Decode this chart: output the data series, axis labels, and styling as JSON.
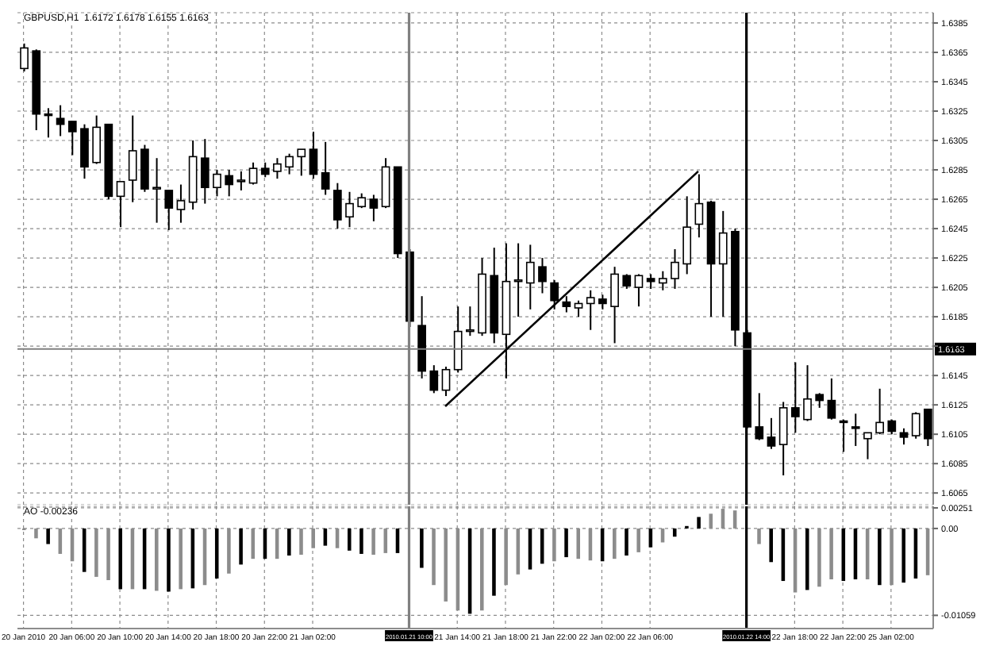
{
  "chart_data": [
    {
      "type": "candlestick",
      "title": "GBPUSD,H1  1.6172 1.6178 1.6155 1.6163",
      "categories": [
        "20 Jan 2010",
        null,
        null,
        null,
        "20 Jan 06:00",
        null,
        null,
        null,
        "20 Jan 10:00",
        null,
        null,
        null,
        "20 Jan 14:00",
        null,
        null,
        null,
        "20 Jan 18:00",
        null,
        null,
        null,
        "20 Jan 22:00",
        null,
        null,
        null,
        "21 Jan 02:00",
        null,
        null,
        null,
        null,
        null,
        null,
        null,
        "2010.01.21 10:00",
        null,
        null,
        null,
        "21 Jan 14:00",
        null,
        null,
        null,
        "21 Jan 18:00",
        null,
        null,
        null,
        "21 Jan 22:00",
        null,
        null,
        null,
        "22 Jan 02:00",
        null,
        null,
        null,
        "22 Jan 06:00",
        null,
        null,
        null,
        null,
        null,
        null,
        null,
        "2010.01.22 14:00",
        null,
        null,
        null,
        "22 Jan 18:00",
        null,
        null,
        null,
        "22 Jan 22:00",
        null,
        null,
        null,
        "25 Jan 02:00",
        null,
        null,
        null
      ],
      "series": [
        {
          "type": "candlestick",
          "color": "#000000",
          "ohlc": [
            [
              1.6354,
              1.6371,
              1.6352,
              1.6368
            ],
            [
              1.6366,
              1.6367,
              1.6312,
              1.6323
            ],
            [
              1.6323,
              1.6327,
              1.6307,
              1.6322
            ],
            [
              1.632,
              1.6329,
              1.6308,
              1.6316
            ],
            [
              1.6318,
              1.6318,
              1.6295,
              1.6311
            ],
            [
              1.6313,
              1.6316,
              1.6279,
              1.6287
            ],
            [
              1.629,
              1.6322,
              1.6289,
              1.6314
            ],
            [
              1.6316,
              1.6316,
              1.6265,
              1.6267
            ],
            [
              1.6267,
              1.6277,
              1.6246,
              1.6277
            ],
            [
              1.6278,
              1.6322,
              1.6263,
              1.6298
            ],
            [
              1.6299,
              1.6302,
              1.627,
              1.6272
            ],
            [
              1.6272,
              1.6293,
              1.6249,
              1.6273
            ],
            [
              1.6271,
              1.6271,
              1.6244,
              1.6259
            ],
            [
              1.6258,
              1.6275,
              1.6249,
              1.6264
            ],
            [
              1.6263,
              1.6305,
              1.6258,
              1.6294
            ],
            [
              1.6293,
              1.6306,
              1.6262,
              1.6273
            ],
            [
              1.6273,
              1.6285,
              1.6267,
              1.6282
            ],
            [
              1.6281,
              1.6285,
              1.6267,
              1.6275
            ],
            [
              1.6277,
              1.6284,
              1.6271,
              1.6278
            ],
            [
              1.6276,
              1.629,
              1.6275,
              1.6286
            ],
            [
              1.6286,
              1.629,
              1.628,
              1.6282
            ],
            [
              1.6284,
              1.6293,
              1.6279,
              1.6289
            ],
            [
              1.6287,
              1.6296,
              1.6282,
              1.6294
            ],
            [
              1.6294,
              1.6299,
              1.6281,
              1.6299
            ],
            [
              1.6299,
              1.6311,
              1.6279,
              1.6282
            ],
            [
              1.6283,
              1.6304,
              1.6268,
              1.6272
            ],
            [
              1.6271,
              1.6276,
              1.6245,
              1.6251
            ],
            [
              1.6253,
              1.627,
              1.6246,
              1.6262
            ],
            [
              1.626,
              1.6269,
              1.6259,
              1.6266
            ],
            [
              1.6265,
              1.6268,
              1.625,
              1.6259
            ],
            [
              1.626,
              1.6293,
              1.6259,
              1.6287
            ],
            [
              1.6287,
              1.6287,
              1.6225,
              1.6228
            ],
            [
              1.6229,
              1.6231,
              1.6178,
              1.6182
            ],
            [
              1.6179,
              1.6199,
              1.6143,
              1.6148
            ],
            [
              1.6148,
              1.6152,
              1.6133,
              1.6135
            ],
            [
              1.6135,
              1.6151,
              1.6131,
              1.6149
            ],
            [
              1.6149,
              1.6192,
              1.6147,
              1.6175
            ],
            [
              1.6175,
              1.6192,
              1.6172,
              1.6176
            ],
            [
              1.6174,
              1.6225,
              1.6172,
              1.6214
            ],
            [
              1.6213,
              1.6232,
              1.6167,
              1.6174
            ],
            [
              1.6173,
              1.6235,
              1.6143,
              1.6209
            ],
            [
              1.6209,
              1.6235,
              1.6185,
              1.621
            ],
            [
              1.6208,
              1.6234,
              1.619,
              1.6222
            ],
            [
              1.6219,
              1.6225,
              1.6201,
              1.6209
            ],
            [
              1.6208,
              1.621,
              1.619,
              1.6196
            ],
            [
              1.6195,
              1.6199,
              1.6188,
              1.6192
            ],
            [
              1.6191,
              1.6196,
              1.6185,
              1.6194
            ],
            [
              1.6194,
              1.6203,
              1.6176,
              1.6198
            ],
            [
              1.6197,
              1.62,
              1.619,
              1.6194
            ],
            [
              1.6192,
              1.6219,
              1.6167,
              1.6214
            ],
            [
              1.6213,
              1.6214,
              1.6204,
              1.6206
            ],
            [
              1.6205,
              1.6214,
              1.6192,
              1.6213
            ],
            [
              1.6211,
              1.6214,
              1.6204,
              1.6209
            ],
            [
              1.6208,
              1.6216,
              1.6203,
              1.6211
            ],
            [
              1.6211,
              1.6231,
              1.6204,
              1.6222
            ],
            [
              1.6221,
              1.6267,
              1.6214,
              1.6246
            ],
            [
              1.6248,
              1.6282,
              1.6239,
              1.6262
            ],
            [
              1.6263,
              1.6264,
              1.6185,
              1.6221
            ],
            [
              1.6221,
              1.6257,
              1.6185,
              1.6242
            ],
            [
              1.6243,
              1.6245,
              1.6165,
              1.6176
            ],
            [
              1.6174,
              1.6176,
              1.6109,
              1.611
            ],
            [
              1.611,
              1.6133,
              1.6101,
              1.6102
            ],
            [
              1.6103,
              1.6116,
              1.6095,
              1.6097
            ],
            [
              1.6098,
              1.6127,
              1.6077,
              1.6123
            ],
            [
              1.6123,
              1.6154,
              1.6106,
              1.6117
            ],
            [
              1.6115,
              1.6152,
              1.6114,
              1.6129
            ],
            [
              1.6132,
              1.6133,
              1.6123,
              1.6128
            ],
            [
              1.6128,
              1.6143,
              1.6115,
              1.6116
            ],
            [
              1.6114,
              1.6115,
              1.6093,
              1.6113
            ],
            [
              1.611,
              1.6119,
              1.6097,
              1.6109
            ],
            [
              1.6102,
              1.6106,
              1.6088,
              1.6106
            ],
            [
              1.6106,
              1.6136,
              1.6105,
              1.6113
            ],
            [
              1.6114,
              1.6115,
              1.6105,
              1.6107
            ],
            [
              1.6106,
              1.6109,
              1.6098,
              1.6103
            ],
            [
              1.6104,
              1.612,
              1.6102,
              1.6119
            ],
            [
              1.6122,
              1.6122,
              1.6097,
              1.6102
            ]
          ]
        },
        {
          "type": "line",
          "color": "#000000",
          "values": [
            null,
            null,
            null,
            null,
            null,
            null,
            null,
            null,
            null,
            null,
            null,
            null,
            null,
            null,
            null,
            null,
            null,
            null,
            null,
            null,
            null,
            null,
            null,
            null,
            null,
            null,
            null,
            null,
            null,
            null,
            null,
            null,
            null,
            null,
            null,
            1.6124,
            null,
            null,
            null,
            null,
            null,
            null,
            null,
            null,
            null,
            null,
            null,
            null,
            null,
            null,
            null,
            null,
            null,
            null,
            null,
            null,
            1.6284,
            null,
            null,
            null,
            null,
            null,
            null,
            null,
            null,
            null,
            null,
            null,
            null,
            null,
            null,
            null,
            null,
            null,
            null,
            null
          ]
        }
      ],
      "ylim": [
        1.6057,
        1.6392
      ],
      "yticks": [
        1.6065,
        1.6085,
        1.6105,
        1.6125,
        1.6145,
        1.6165,
        1.6185,
        1.6205,
        1.6225,
        1.6245,
        1.6265,
        1.6285,
        1.6305,
        1.6325,
        1.6345,
        1.6365,
        1.6385
      ],
      "grid": true,
      "tick_labels": "y",
      "ref_lines": [
        {
          "axis": "x",
          "value": "2010.01.21 10:00",
          "color": "#808080"
        },
        {
          "axis": "x",
          "value": "2010.01.22 14:00",
          "color": "#000000"
        },
        {
          "axis": "y",
          "value": 1.6163,
          "label": "1.6163",
          "color": "#808080"
        }
      ]
    },
    {
      "type": "bar",
      "title": "AO -0.00236",
      "categories": [
        "20 Jan 2010",
        null,
        null,
        null,
        "20 Jan 06:00",
        null,
        null,
        null,
        "20 Jan 10:00",
        null,
        null,
        null,
        "20 Jan 14:00",
        null,
        null,
        null,
        "20 Jan 18:00",
        null,
        null,
        null,
        "20 Jan 22:00",
        null,
        null,
        null,
        "21 Jan 02:00",
        null,
        null,
        null,
        null,
        null,
        null,
        null,
        "2010.01.21 10:00",
        null,
        null,
        null,
        "21 Jan 14:00",
        null,
        null,
        null,
        "21 Jan 18:00",
        null,
        null,
        null,
        "21 Jan 22:00",
        null,
        null,
        null,
        "22 Jan 02:00",
        null,
        null,
        null,
        "22 Jan 06:00",
        null,
        null,
        null,
        null,
        null,
        null,
        null,
        "2010.01.22 14:00",
        null,
        null,
        null,
        "22 Jan 18:00",
        null,
        null,
        null,
        "22 Jan 22:00",
        null,
        null,
        null,
        "25 Jan 02:00",
        null,
        null,
        null
      ],
      "values": [
        -0.0002,
        -0.0012,
        -0.0019,
        -0.0031,
        -0.004,
        -0.0053,
        -0.0059,
        -0.0063,
        -0.0074,
        -0.0074,
        -0.0074,
        -0.0076,
        -0.0077,
        -0.0074,
        -0.0073,
        -0.0069,
        -0.0061,
        -0.0055,
        -0.0044,
        -0.0037,
        -0.0037,
        -0.0037,
        -0.0033,
        -0.0032,
        -0.0024,
        -0.0021,
        -0.0024,
        -0.0027,
        -0.0031,
        -0.0032,
        -0.003,
        -0.003,
        null,
        -0.0048,
        -0.0069,
        -0.0089,
        -0.01,
        -0.0104,
        -0.01,
        -0.0082,
        -0.0069,
        -0.0056,
        -0.005,
        -0.0043,
        -0.004,
        -0.0035,
        -0.0037,
        -0.0039,
        -0.004,
        -0.0037,
        -0.0033,
        -0.0029,
        -0.0023,
        -0.0017,
        -0.001,
        0.0003,
        0.0014,
        0.0018,
        0.0024,
        0.0022,
        null,
        -0.0019,
        -0.0041,
        -0.0064,
        -0.0078,
        -0.0075,
        -0.0071,
        -0.0062,
        -0.0064,
        -0.0062,
        -0.0062,
        -0.0069,
        -0.0069,
        -0.0066,
        -0.0061,
        -0.0057
      ],
      "colors": [
        "#8c8c8c",
        "#8c8c8c",
        "#000000",
        "#8c8c8c",
        "#8c8c8c",
        "#000000",
        "#8c8c8c",
        "#8c8c8c",
        "#000000",
        "#8c8c8c",
        "#000000",
        "#8c8c8c",
        "#000000",
        "#8c8c8c",
        "#000000",
        "#8c8c8c",
        "#000000",
        "#8c8c8c",
        "#000000",
        "#8c8c8c",
        "#000000",
        "#8c8c8c",
        "#000000",
        "#8c8c8c",
        "#8c8c8c",
        "#000000",
        "#8c8c8c",
        "#000000",
        "#000000",
        "#8c8c8c",
        "#8c8c8c",
        "#000000",
        "#000000",
        "#000000",
        "#8c8c8c",
        "#8c8c8c",
        "#8c8c8c",
        "#000000",
        "#8c8c8c",
        "#000000",
        "#8c8c8c",
        "#8c8c8c",
        "#000000",
        "#000000",
        "#8c8c8c",
        "#000000",
        "#8c8c8c",
        "#8c8c8c",
        "#000000",
        "#8c8c8c",
        "#000000",
        "#8c8c8c",
        "#000000",
        "#8c8c8c",
        "#000000",
        "#000000",
        "#000000",
        "#8c8c8c",
        "#8c8c8c",
        "#8c8c8c",
        "#000000",
        "#8c8c8c",
        "#000000",
        "#000000",
        "#8c8c8c",
        "#000000",
        "#8c8c8c",
        "#8c8c8c",
        "#000000",
        "#000000",
        "#8c8c8c",
        "#000000",
        "#8c8c8c",
        "#000000",
        "#000000",
        "#8c8c8c"
      ],
      "ylim": [
        -0.0122,
        0.0027
      ],
      "yticks": [
        -0.01059,
        {
          "value": 0,
          "label": "0.00"
        },
        0.00251
      ],
      "grid": true,
      "ref_lines": [
        {
          "axis": "x",
          "value": "2010.01.21 10:00",
          "color": "#808080"
        },
        {
          "axis": "x",
          "value": "2010.01.22 14:00",
          "color": "#000000"
        }
      ]
    }
  ]
}
